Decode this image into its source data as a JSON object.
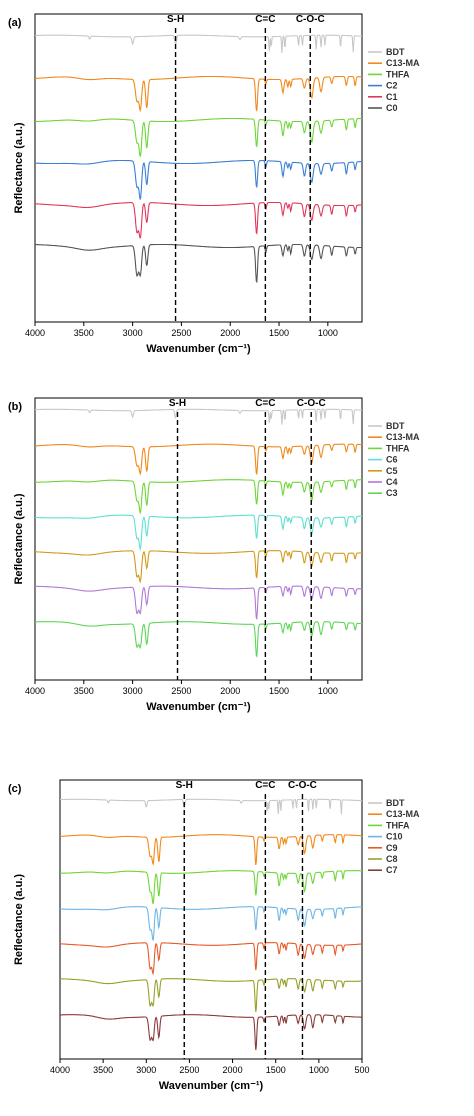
{
  "chart_data": [
    {
      "type": "line",
      "panel_label": "(a)",
      "title": "",
      "xlabel": "Wavenumber (cm⁻¹)",
      "ylabel": "Reflectance (a.u.)",
      "xlim": [
        4000,
        650
      ],
      "xticks": [
        4000,
        3500,
        3000,
        2500,
        2000,
        1500,
        1000
      ],
      "grid": false,
      "legend_position": "right",
      "reference_lines": [
        {
          "label": "S-H",
          "x": 2560
        },
        {
          "label": "C=C",
          "x": 1640
        },
        {
          "label": "C-O-C",
          "x": 1180
        }
      ],
      "series": [
        {
          "name": "BDT",
          "color": "#c8c8c8",
          "baseline": 0.0
        },
        {
          "name": "C13-MA",
          "color": "#f08a1c",
          "baseline": 1.0
        },
        {
          "name": "THFA",
          "color": "#6fd63a",
          "baseline": 2.0
        },
        {
          "name": "C2",
          "color": "#3b7fd6",
          "baseline": 3.0
        },
        {
          "name": "C1",
          "color": "#e0385a",
          "baseline": 4.0
        },
        {
          "name": "C0",
          "color": "#555555",
          "baseline": 5.0
        }
      ]
    },
    {
      "type": "line",
      "panel_label": "(b)",
      "title": "",
      "xlabel": "Wavenumber (cm⁻¹)",
      "ylabel": "Reflectance (a.u.)",
      "xlim": [
        4000,
        650
      ],
      "xticks": [
        4000,
        3500,
        3000,
        2500,
        2000,
        1500,
        1000
      ],
      "grid": false,
      "legend_position": "right",
      "reference_lines": [
        {
          "label": "S-H",
          "x": 2540
        },
        {
          "label": "C=C",
          "x": 1640
        },
        {
          "label": "C-O-C",
          "x": 1170
        }
      ],
      "series": [
        {
          "name": "BDT",
          "color": "#c8c8c8",
          "baseline": 0.0
        },
        {
          "name": "C13-MA",
          "color": "#f08a1c",
          "baseline": 1.0
        },
        {
          "name": "THFA",
          "color": "#6fd63a",
          "baseline": 2.0
        },
        {
          "name": "C6",
          "color": "#5fe0d0",
          "baseline": 3.0
        },
        {
          "name": "C5",
          "color": "#d49a1c",
          "baseline": 4.0
        },
        {
          "name": "C4",
          "color": "#b07ad6",
          "baseline": 5.0
        },
        {
          "name": "C3",
          "color": "#5fd65a",
          "baseline": 6.0
        }
      ]
    },
    {
      "type": "line",
      "panel_label": "(c)",
      "title": "",
      "xlabel": "Wavenumber (cm⁻¹)",
      "ylabel": "Reflectance (a.u.)",
      "xlim": [
        4000,
        500
      ],
      "xticks": [
        4000,
        3500,
        3000,
        2500,
        2000,
        1500,
        1000,
        500
      ],
      "grid": false,
      "legend_position": "right",
      "reference_lines": [
        {
          "label": "S-H",
          "x": 2560
        },
        {
          "label": "C=C",
          "x": 1620
        },
        {
          "label": "C-O-C",
          "x": 1190
        }
      ],
      "series": [
        {
          "name": "BDT",
          "color": "#c8c8c8",
          "baseline": 0.0
        },
        {
          "name": "C13-MA",
          "color": "#f08a1c",
          "baseline": 1.0
        },
        {
          "name": "THFA",
          "color": "#6fd63a",
          "baseline": 2.0
        },
        {
          "name": "C10",
          "color": "#6fb6e6",
          "baseline": 3.0
        },
        {
          "name": "C9",
          "color": "#e85a28",
          "baseline": 4.0
        },
        {
          "name": "C8",
          "color": "#9aa02a",
          "baseline": 5.0
        },
        {
          "name": "C7",
          "color": "#8c3a3a",
          "baseline": 6.0
        }
      ]
    }
  ]
}
